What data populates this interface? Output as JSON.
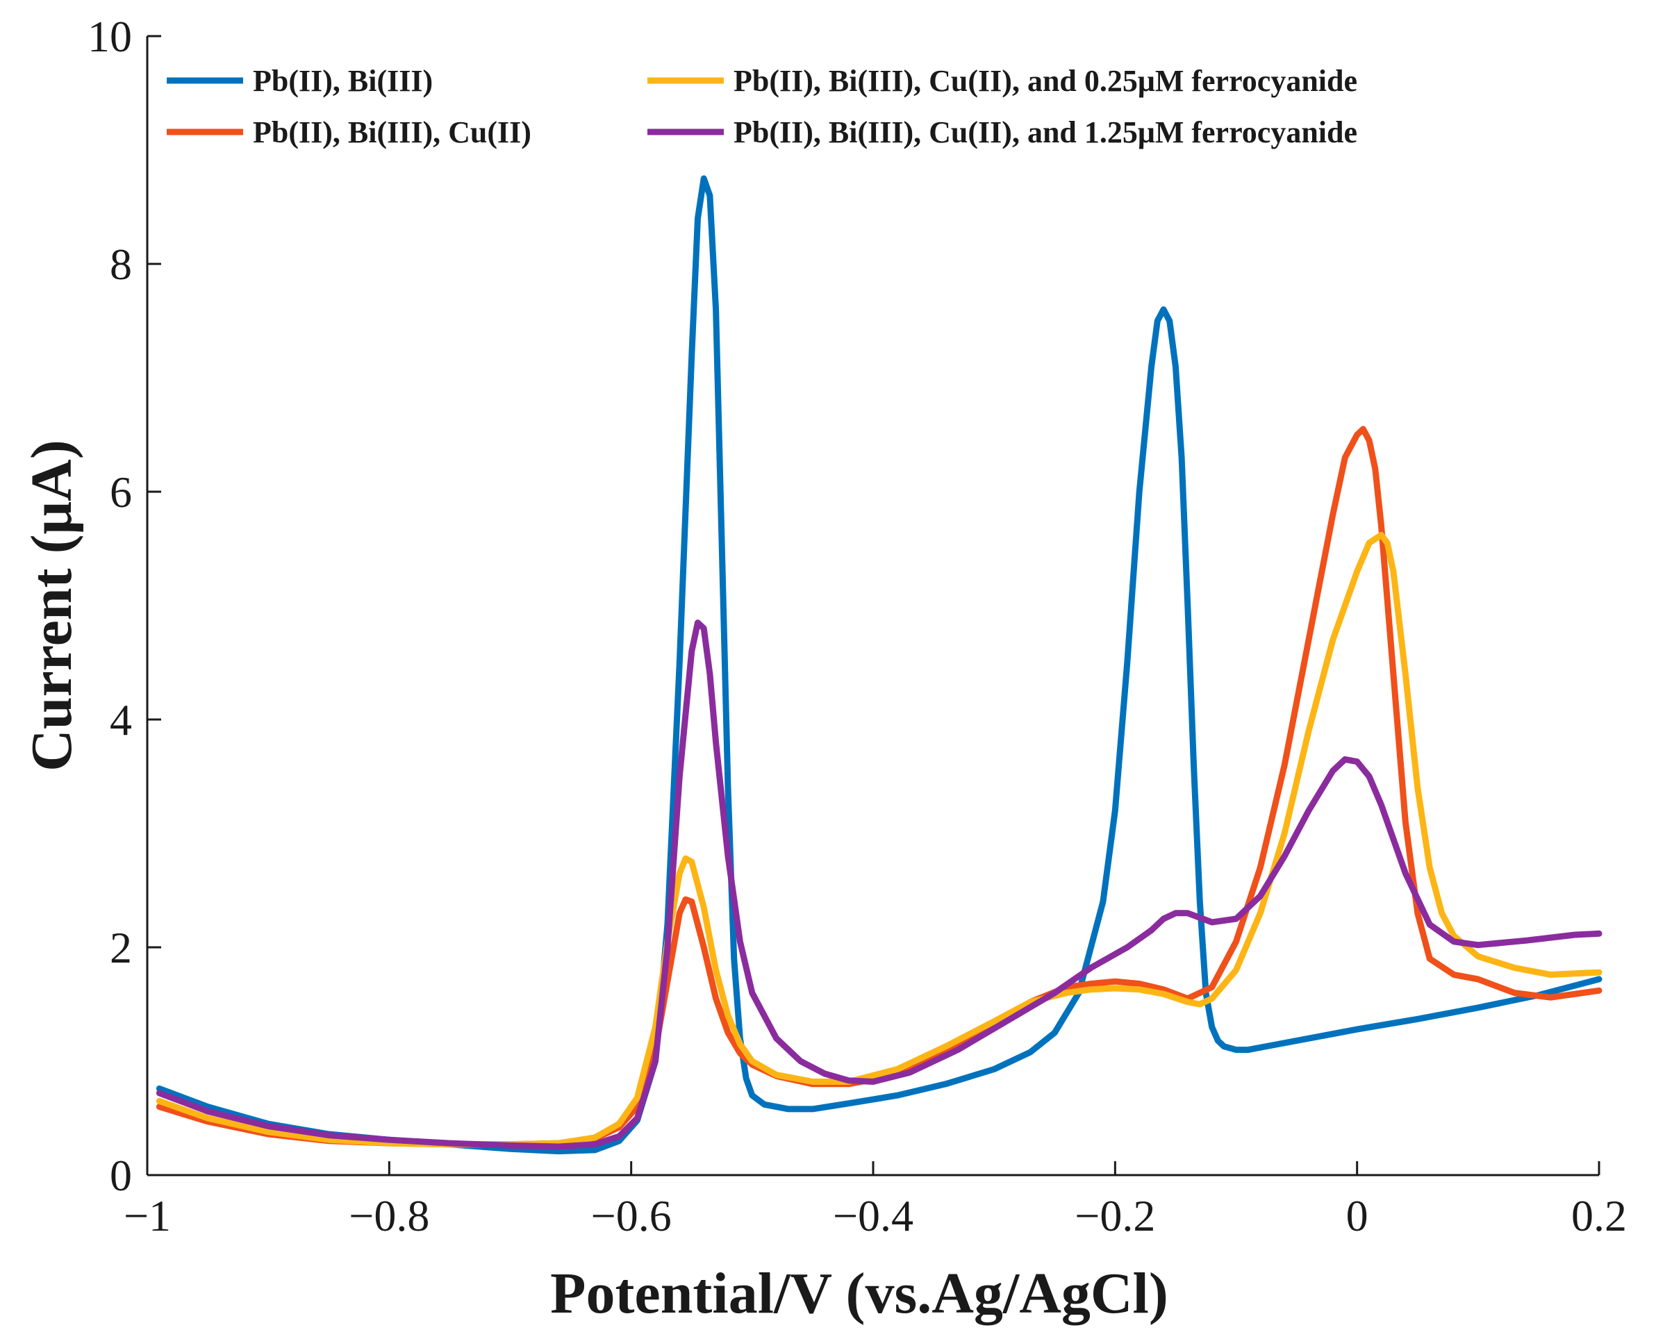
{
  "chart_data": {
    "type": "line",
    "title": "",
    "xlabel": "Potential/V (vs.Ag/AgCl)",
    "ylabel": "Current (μA)",
    "xlim": [
      -1,
      0.2
    ],
    "ylim": [
      0,
      10
    ],
    "grid": false,
    "legend_position": "top",
    "x_ticks": [
      -1,
      -0.8,
      -0.6,
      -0.4,
      -0.2,
      0,
      0.2
    ],
    "x_tick_labels": [
      "−1",
      "−0.8",
      "−0.6",
      "−0.4",
      "−0.2",
      "0",
      "0.2"
    ],
    "y_ticks": [
      0,
      2,
      4,
      6,
      8,
      10
    ],
    "y_tick_labels": [
      "0",
      "2",
      "4",
      "6",
      "8",
      "10"
    ],
    "series": [
      {
        "name": "Pb(II), Bi(III)",
        "color": "#0072BD",
        "x": [
          -0.99,
          -0.95,
          -0.9,
          -0.85,
          -0.8,
          -0.75,
          -0.7,
          -0.66,
          -0.63,
          -0.61,
          -0.595,
          -0.58,
          -0.57,
          -0.56,
          -0.55,
          -0.545,
          -0.54,
          -0.535,
          -0.53,
          -0.525,
          -0.52,
          -0.515,
          -0.51,
          -0.505,
          -0.5,
          -0.49,
          -0.47,
          -0.45,
          -0.42,
          -0.38,
          -0.34,
          -0.3,
          -0.27,
          -0.25,
          -0.23,
          -0.21,
          -0.2,
          -0.19,
          -0.18,
          -0.17,
          -0.165,
          -0.16,
          -0.155,
          -0.15,
          -0.145,
          -0.14,
          -0.135,
          -0.13,
          -0.125,
          -0.12,
          -0.115,
          -0.11,
          -0.1,
          -0.09,
          -0.07,
          -0.04,
          0,
          0.05,
          0.1,
          0.15,
          0.2
        ],
        "values": [
          0.76,
          0.6,
          0.45,
          0.36,
          0.31,
          0.27,
          0.23,
          0.21,
          0.22,
          0.3,
          0.48,
          1.0,
          2.2,
          4.5,
          7.2,
          8.4,
          8.75,
          8.6,
          7.6,
          5.5,
          3.4,
          1.9,
          1.2,
          0.85,
          0.7,
          0.62,
          0.58,
          0.58,
          0.63,
          0.7,
          0.8,
          0.93,
          1.08,
          1.25,
          1.6,
          2.4,
          3.2,
          4.5,
          6.0,
          7.1,
          7.5,
          7.6,
          7.5,
          7.1,
          6.3,
          5.0,
          3.6,
          2.4,
          1.6,
          1.3,
          1.18,
          1.13,
          1.1,
          1.1,
          1.14,
          1.2,
          1.28,
          1.37,
          1.47,
          1.58,
          1.72
        ]
      },
      {
        "name": "Pb(II), Bi(III), Cu(II)",
        "color": "#F0501A",
        "x": [
          -0.99,
          -0.95,
          -0.9,
          -0.85,
          -0.8,
          -0.75,
          -0.7,
          -0.66,
          -0.63,
          -0.61,
          -0.595,
          -0.58,
          -0.57,
          -0.56,
          -0.555,
          -0.55,
          -0.54,
          -0.53,
          -0.52,
          -0.51,
          -0.5,
          -0.48,
          -0.45,
          -0.42,
          -0.38,
          -0.34,
          -0.3,
          -0.27,
          -0.24,
          -0.22,
          -0.2,
          -0.18,
          -0.16,
          -0.14,
          -0.12,
          -0.1,
          -0.08,
          -0.06,
          -0.04,
          -0.02,
          -0.01,
          0,
          0.005,
          0.01,
          0.015,
          0.02,
          0.03,
          0.04,
          0.05,
          0.06,
          0.08,
          0.1,
          0.13,
          0.16,
          0.2
        ],
        "values": [
          0.6,
          0.47,
          0.36,
          0.3,
          0.28,
          0.27,
          0.27,
          0.28,
          0.32,
          0.42,
          0.6,
          1.1,
          1.7,
          2.3,
          2.42,
          2.4,
          2.0,
          1.55,
          1.25,
          1.07,
          0.97,
          0.87,
          0.8,
          0.8,
          0.88,
          1.08,
          1.32,
          1.52,
          1.65,
          1.68,
          1.7,
          1.68,
          1.63,
          1.55,
          1.65,
          2.05,
          2.7,
          3.6,
          4.7,
          5.8,
          6.3,
          6.5,
          6.55,
          6.45,
          6.2,
          5.7,
          4.4,
          3.1,
          2.3,
          1.9,
          1.76,
          1.72,
          1.6,
          1.56,
          1.62
        ]
      },
      {
        "name": "Pb(II), Bi(III), Cu(II), and 0.25μM ferrocyanide",
        "color": "#FDB515",
        "x": [
          -0.99,
          -0.95,
          -0.9,
          -0.85,
          -0.8,
          -0.75,
          -0.7,
          -0.66,
          -0.63,
          -0.61,
          -0.595,
          -0.58,
          -0.57,
          -0.56,
          -0.555,
          -0.55,
          -0.54,
          -0.53,
          -0.52,
          -0.51,
          -0.5,
          -0.48,
          -0.45,
          -0.42,
          -0.38,
          -0.34,
          -0.3,
          -0.27,
          -0.24,
          -0.22,
          -0.2,
          -0.18,
          -0.16,
          -0.14,
          -0.13,
          -0.12,
          -0.1,
          -0.08,
          -0.06,
          -0.04,
          -0.02,
          0,
          0.01,
          0.02,
          0.025,
          0.03,
          0.04,
          0.05,
          0.06,
          0.07,
          0.08,
          0.1,
          0.13,
          0.16,
          0.2
        ],
        "values": [
          0.65,
          0.5,
          0.38,
          0.31,
          0.28,
          0.27,
          0.27,
          0.28,
          0.33,
          0.45,
          0.68,
          1.3,
          2.05,
          2.65,
          2.78,
          2.75,
          2.35,
          1.8,
          1.4,
          1.15,
          1.0,
          0.88,
          0.82,
          0.82,
          0.93,
          1.13,
          1.35,
          1.52,
          1.6,
          1.63,
          1.64,
          1.63,
          1.59,
          1.52,
          1.5,
          1.55,
          1.8,
          2.3,
          3.0,
          3.9,
          4.7,
          5.3,
          5.55,
          5.62,
          5.55,
          5.3,
          4.4,
          3.4,
          2.7,
          2.3,
          2.1,
          1.92,
          1.82,
          1.76,
          1.78
        ]
      },
      {
        "name": "Pb(II), Bi(III), Cu(II), and 1.25μM ferrocyanide",
        "color": "#8B2C9E",
        "x": [
          -0.99,
          -0.95,
          -0.9,
          -0.85,
          -0.8,
          -0.75,
          -0.7,
          -0.66,
          -0.63,
          -0.61,
          -0.595,
          -0.58,
          -0.57,
          -0.56,
          -0.55,
          -0.545,
          -0.54,
          -0.535,
          -0.53,
          -0.52,
          -0.51,
          -0.5,
          -0.48,
          -0.46,
          -0.44,
          -0.42,
          -0.4,
          -0.37,
          -0.33,
          -0.29,
          -0.25,
          -0.22,
          -0.19,
          -0.17,
          -0.16,
          -0.15,
          -0.14,
          -0.12,
          -0.1,
          -0.08,
          -0.06,
          -0.04,
          -0.02,
          -0.01,
          0,
          0.01,
          0.02,
          0.04,
          0.06,
          0.08,
          0.1,
          0.14,
          0.18,
          0.2
        ],
        "values": [
          0.72,
          0.56,
          0.43,
          0.35,
          0.31,
          0.28,
          0.26,
          0.25,
          0.27,
          0.34,
          0.5,
          1.0,
          2.0,
          3.5,
          4.6,
          4.85,
          4.8,
          4.4,
          3.8,
          2.8,
          2.05,
          1.6,
          1.2,
          1.0,
          0.89,
          0.83,
          0.82,
          0.9,
          1.1,
          1.35,
          1.6,
          1.82,
          2.0,
          2.15,
          2.25,
          2.3,
          2.3,
          2.22,
          2.25,
          2.45,
          2.8,
          3.2,
          3.55,
          3.65,
          3.63,
          3.5,
          3.25,
          2.65,
          2.2,
          2.05,
          2.02,
          2.06,
          2.11,
          2.12
        ]
      }
    ]
  }
}
